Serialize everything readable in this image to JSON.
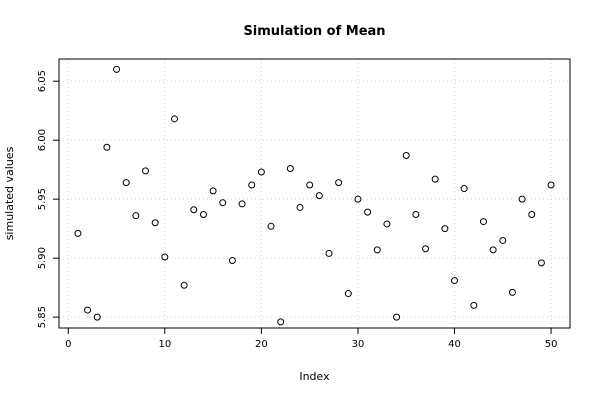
{
  "chart_data": {
    "type": "scatter",
    "title": "Simulation of Mean",
    "xlabel": "Index",
    "ylabel": "simulated values",
    "xlim": [
      -0.96,
      51.96
    ],
    "ylim": [
      5.8408,
      6.0688
    ],
    "x_ticks": [
      0,
      10,
      20,
      30,
      40,
      50
    ],
    "y_ticks": [
      5.85,
      5.9,
      5.95,
      6.0,
      6.05
    ],
    "x_tick_labels": [
      "0",
      "10",
      "20",
      "30",
      "40",
      "50"
    ],
    "y_tick_labels": [
      "5.85",
      "5.90",
      "5.95",
      "6.00",
      "6.05"
    ],
    "grid": true,
    "x": [
      1,
      2,
      3,
      4,
      5,
      6,
      7,
      8,
      9,
      10,
      11,
      12,
      13,
      14,
      15,
      16,
      17,
      18,
      19,
      20,
      21,
      22,
      23,
      24,
      25,
      26,
      27,
      28,
      29,
      30,
      31,
      32,
      33,
      34,
      35,
      36,
      37,
      38,
      39,
      40,
      41,
      42,
      43,
      44,
      45,
      46,
      47,
      48,
      49,
      50
    ],
    "y": [
      5.921,
      5.856,
      5.85,
      5.994,
      6.06,
      5.964,
      5.936,
      5.974,
      5.93,
      5.901,
      6.018,
      5.877,
      5.941,
      5.937,
      5.957,
      5.947,
      5.898,
      5.946,
      5.962,
      5.973,
      5.927,
      5.846,
      5.976,
      5.943,
      5.962,
      5.953,
      5.904,
      5.964,
      5.87,
      5.95,
      5.939,
      5.907,
      5.929,
      5.85,
      5.987,
      5.937,
      5.908,
      5.967,
      5.925,
      5.881,
      5.959,
      5.86,
      5.931,
      5.907,
      5.915,
      5.871,
      5.95,
      5.937,
      5.896,
      5.962
    ]
  }
}
